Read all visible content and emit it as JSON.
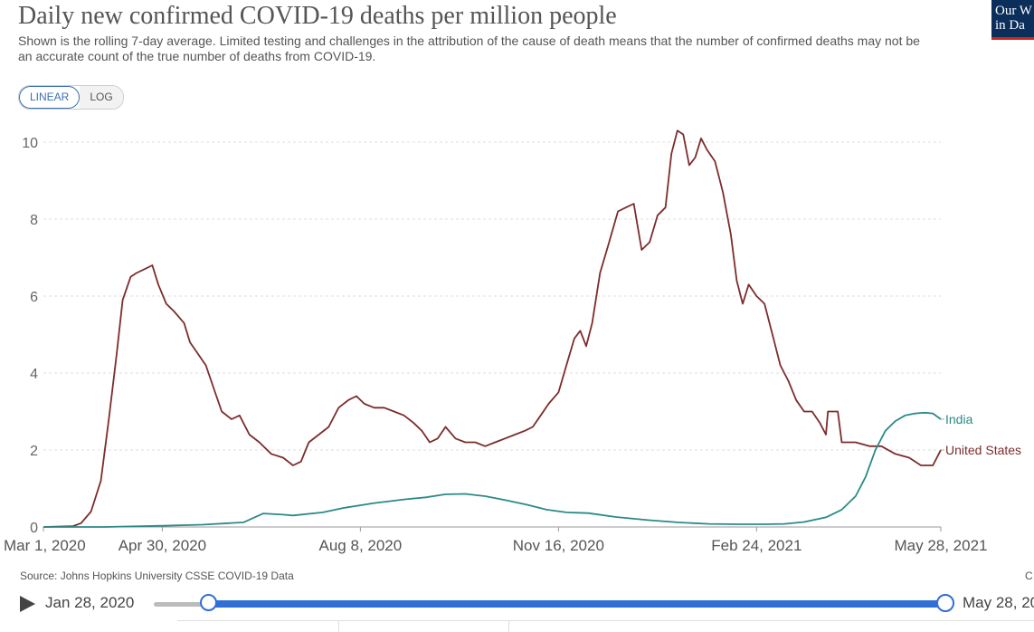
{
  "header": {
    "title": "Daily new confirmed COVID-19 deaths per million people",
    "subtitle": "Shown is the rolling 7-day average. Limited testing and challenges in the attribution of the cause of death means that the number of confirmed deaths may not be an accurate count of the true number of deaths from COVID-19.",
    "logo_line1": "Our W",
    "logo_line2": "in Da"
  },
  "scale_toggle": {
    "linear": "LINEAR",
    "log": "LOG",
    "selected": "LINEAR"
  },
  "chart_data": {
    "type": "line",
    "title": "Daily new confirmed COVID-19 deaths per million people",
    "ylim": [
      0,
      10
    ],
    "yticks": [
      "0",
      "2",
      "4",
      "6",
      "8",
      "10"
    ],
    "xlim": [
      "2020-03-01",
      "2021-05-28"
    ],
    "xticks": [
      "Mar 1, 2020",
      "Apr 30, 2020",
      "Aug 8, 2020",
      "Nov 16, 2020",
      "Feb 24, 2021",
      "May 28, 2021"
    ],
    "grid": "horizontal dashed",
    "legend": "inline labels at line ends",
    "series": [
      {
        "name": "United States",
        "color": "#7c2c2c",
        "points": [
          [
            "2020-03-01",
            0
          ],
          [
            "2020-03-16",
            0.02
          ],
          [
            "2020-03-20",
            0.1
          ],
          [
            "2020-03-25",
            0.4
          ],
          [
            "2020-03-30",
            1.2
          ],
          [
            "2020-04-03",
            2.8
          ],
          [
            "2020-04-07",
            4.5
          ],
          [
            "2020-04-10",
            5.9
          ],
          [
            "2020-04-14",
            6.5
          ],
          [
            "2020-04-17",
            6.6
          ],
          [
            "2020-04-21",
            6.7
          ],
          [
            "2020-04-25",
            6.8
          ],
          [
            "2020-04-28",
            6.3
          ],
          [
            "2020-05-02",
            5.8
          ],
          [
            "2020-05-06",
            5.6
          ],
          [
            "2020-05-11",
            5.3
          ],
          [
            "2020-05-14",
            4.8
          ],
          [
            "2020-05-18",
            4.5
          ],
          [
            "2020-05-22",
            4.2
          ],
          [
            "2020-05-26",
            3.6
          ],
          [
            "2020-05-30",
            3.0
          ],
          [
            "2020-06-04",
            2.8
          ],
          [
            "2020-06-08",
            2.9
          ],
          [
            "2020-06-13",
            2.4
          ],
          [
            "2020-06-18",
            2.2
          ],
          [
            "2020-06-24",
            1.9
          ],
          [
            "2020-06-30",
            1.8
          ],
          [
            "2020-07-05",
            1.6
          ],
          [
            "2020-07-09",
            1.7
          ],
          [
            "2020-07-13",
            2.2
          ],
          [
            "2020-07-18",
            2.4
          ],
          [
            "2020-07-23",
            2.6
          ],
          [
            "2020-07-28",
            3.1
          ],
          [
            "2020-08-02",
            3.3
          ],
          [
            "2020-08-06",
            3.4
          ],
          [
            "2020-08-10",
            3.2
          ],
          [
            "2020-08-15",
            3.1
          ],
          [
            "2020-08-20",
            3.1
          ],
          [
            "2020-08-25",
            3.0
          ],
          [
            "2020-08-30",
            2.9
          ],
          [
            "2020-09-04",
            2.7
          ],
          [
            "2020-09-08",
            2.5
          ],
          [
            "2020-09-12",
            2.2
          ],
          [
            "2020-09-16",
            2.3
          ],
          [
            "2020-09-20",
            2.6
          ],
          [
            "2020-09-25",
            2.3
          ],
          [
            "2020-09-30",
            2.2
          ],
          [
            "2020-10-05",
            2.2
          ],
          [
            "2020-10-10",
            2.1
          ],
          [
            "2020-10-15",
            2.2
          ],
          [
            "2020-10-20",
            2.3
          ],
          [
            "2020-10-25",
            2.4
          ],
          [
            "2020-10-30",
            2.5
          ],
          [
            "2020-11-03",
            2.6
          ],
          [
            "2020-11-07",
            2.9
          ],
          [
            "2020-11-11",
            3.2
          ],
          [
            "2020-11-16",
            3.5
          ],
          [
            "2020-11-20",
            4.2
          ],
          [
            "2020-11-24",
            4.9
          ],
          [
            "2020-11-27",
            5.1
          ],
          [
            "2020-11-30",
            4.7
          ],
          [
            "2020-12-03",
            5.3
          ],
          [
            "2020-12-07",
            6.6
          ],
          [
            "2020-12-11",
            7.3
          ],
          [
            "2020-12-16",
            8.2
          ],
          [
            "2020-12-20",
            8.3
          ],
          [
            "2020-12-24",
            8.4
          ],
          [
            "2020-12-28",
            7.2
          ],
          [
            "2021-01-01",
            7.4
          ],
          [
            "2021-01-05",
            8.1
          ],
          [
            "2021-01-09",
            8.3
          ],
          [
            "2021-01-12",
            9.7
          ],
          [
            "2021-01-15",
            10.3
          ],
          [
            "2021-01-18",
            10.2
          ],
          [
            "2021-01-21",
            9.4
          ],
          [
            "2021-01-24",
            9.6
          ],
          [
            "2021-01-27",
            10.1
          ],
          [
            "2021-01-30",
            9.8
          ],
          [
            "2021-02-03",
            9.5
          ],
          [
            "2021-02-07",
            8.7
          ],
          [
            "2021-02-11",
            7.6
          ],
          [
            "2021-02-14",
            6.4
          ],
          [
            "2021-02-17",
            5.8
          ],
          [
            "2021-02-20",
            6.3
          ],
          [
            "2021-02-24",
            6.0
          ],
          [
            "2021-02-28",
            5.8
          ],
          [
            "2021-03-04",
            5.0
          ],
          [
            "2021-03-08",
            4.2
          ],
          [
            "2021-03-12",
            3.8
          ],
          [
            "2021-03-16",
            3.3
          ],
          [
            "2021-03-20",
            3.0
          ],
          [
            "2021-03-24",
            3.0
          ],
          [
            "2021-03-28",
            2.7
          ],
          [
            "2021-03-31",
            2.4
          ],
          [
            "2021-04-01",
            3.0
          ],
          [
            "2021-04-06",
            3.0
          ],
          [
            "2021-04-08",
            2.2
          ],
          [
            "2021-04-15",
            2.2
          ],
          [
            "2021-04-22",
            2.1
          ],
          [
            "2021-04-28",
            2.1
          ],
          [
            "2021-05-05",
            1.9
          ],
          [
            "2021-05-12",
            1.8
          ],
          [
            "2021-05-18",
            1.6
          ],
          [
            "2021-05-24",
            1.6
          ],
          [
            "2021-05-28",
            2.0
          ]
        ]
      },
      {
        "name": "India",
        "color": "#2b8a86",
        "points": [
          [
            "2020-03-01",
            0
          ],
          [
            "2020-04-01",
            0
          ],
          [
            "2020-04-30",
            0.03
          ],
          [
            "2020-05-20",
            0.06
          ],
          [
            "2020-06-10",
            0.12
          ],
          [
            "2020-06-20",
            0.35
          ],
          [
            "2020-06-30",
            0.32
          ],
          [
            "2020-07-05",
            0.3
          ],
          [
            "2020-07-20",
            0.38
          ],
          [
            "2020-07-31",
            0.5
          ],
          [
            "2020-08-15",
            0.62
          ],
          [
            "2020-08-31",
            0.72
          ],
          [
            "2020-09-10",
            0.77
          ],
          [
            "2020-09-20",
            0.85
          ],
          [
            "2020-09-30",
            0.86
          ],
          [
            "2020-10-10",
            0.8
          ],
          [
            "2020-10-20",
            0.7
          ],
          [
            "2020-10-31",
            0.58
          ],
          [
            "2020-11-10",
            0.45
          ],
          [
            "2020-11-20",
            0.38
          ],
          [
            "2020-12-01",
            0.36
          ],
          [
            "2020-12-15",
            0.26
          ],
          [
            "2020-12-31",
            0.18
          ],
          [
            "2021-01-15",
            0.12
          ],
          [
            "2021-01-31",
            0.08
          ],
          [
            "2021-02-15",
            0.07
          ],
          [
            "2021-02-28",
            0.07
          ],
          [
            "2021-03-10",
            0.08
          ],
          [
            "2021-03-20",
            0.13
          ],
          [
            "2021-03-31",
            0.25
          ],
          [
            "2021-04-08",
            0.45
          ],
          [
            "2021-04-15",
            0.8
          ],
          [
            "2021-04-20",
            1.3
          ],
          [
            "2021-04-25",
            2.0
          ],
          [
            "2021-04-30",
            2.5
          ],
          [
            "2021-05-05",
            2.75
          ],
          [
            "2021-05-10",
            2.9
          ],
          [
            "2021-05-15",
            2.95
          ],
          [
            "2021-05-20",
            2.97
          ],
          [
            "2021-05-24",
            2.95
          ],
          [
            "2021-05-28",
            2.8
          ]
        ]
      }
    ]
  },
  "source": "Source: Johns Hopkins University CSSE COVID-19 Data",
  "corner_letter": "C",
  "timeline": {
    "start": "Jan 28, 2020",
    "end": "May 28, 20"
  }
}
